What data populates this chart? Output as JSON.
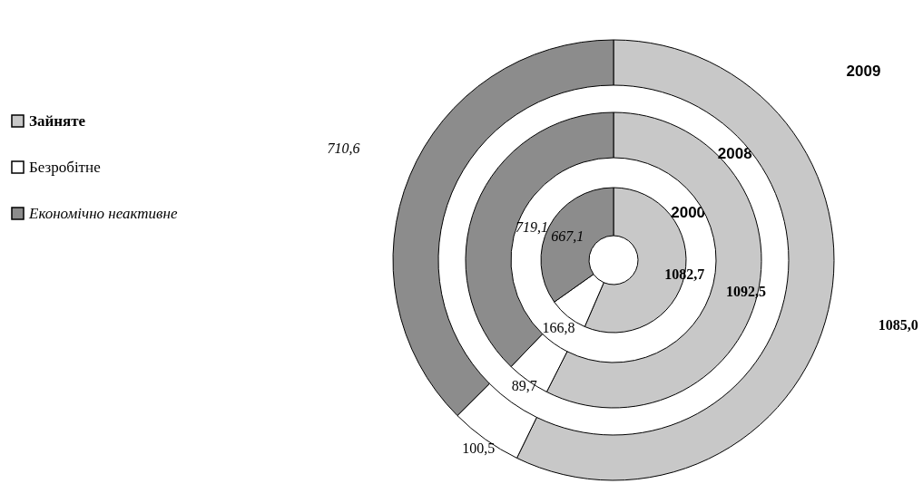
{
  "chart_data": {
    "type": "donut",
    "categories": [
      "Зайняте",
      "Безробітне",
      "Економічно неактивне"
    ],
    "colors": [
      "#c8c8c8",
      "#ffffff",
      "#8c8c8c"
    ],
    "series": [
      {
        "name": "2000",
        "values": [
          1082.7,
          166.8,
          667.1
        ],
        "value_labels": [
          "1082,7",
          "166,8",
          "667,1"
        ]
      },
      {
        "name": "2008",
        "values": [
          1092.5,
          89.7,
          719.1
        ],
        "value_labels": [
          "1092,5",
          "89,7",
          "719,1"
        ]
      },
      {
        "name": "2009",
        "values": [
          1085.0,
          100.5,
          710.6
        ],
        "value_labels": [
          "1085,0",
          "100,5",
          "710,6"
        ]
      }
    ],
    "legend": "left"
  }
}
